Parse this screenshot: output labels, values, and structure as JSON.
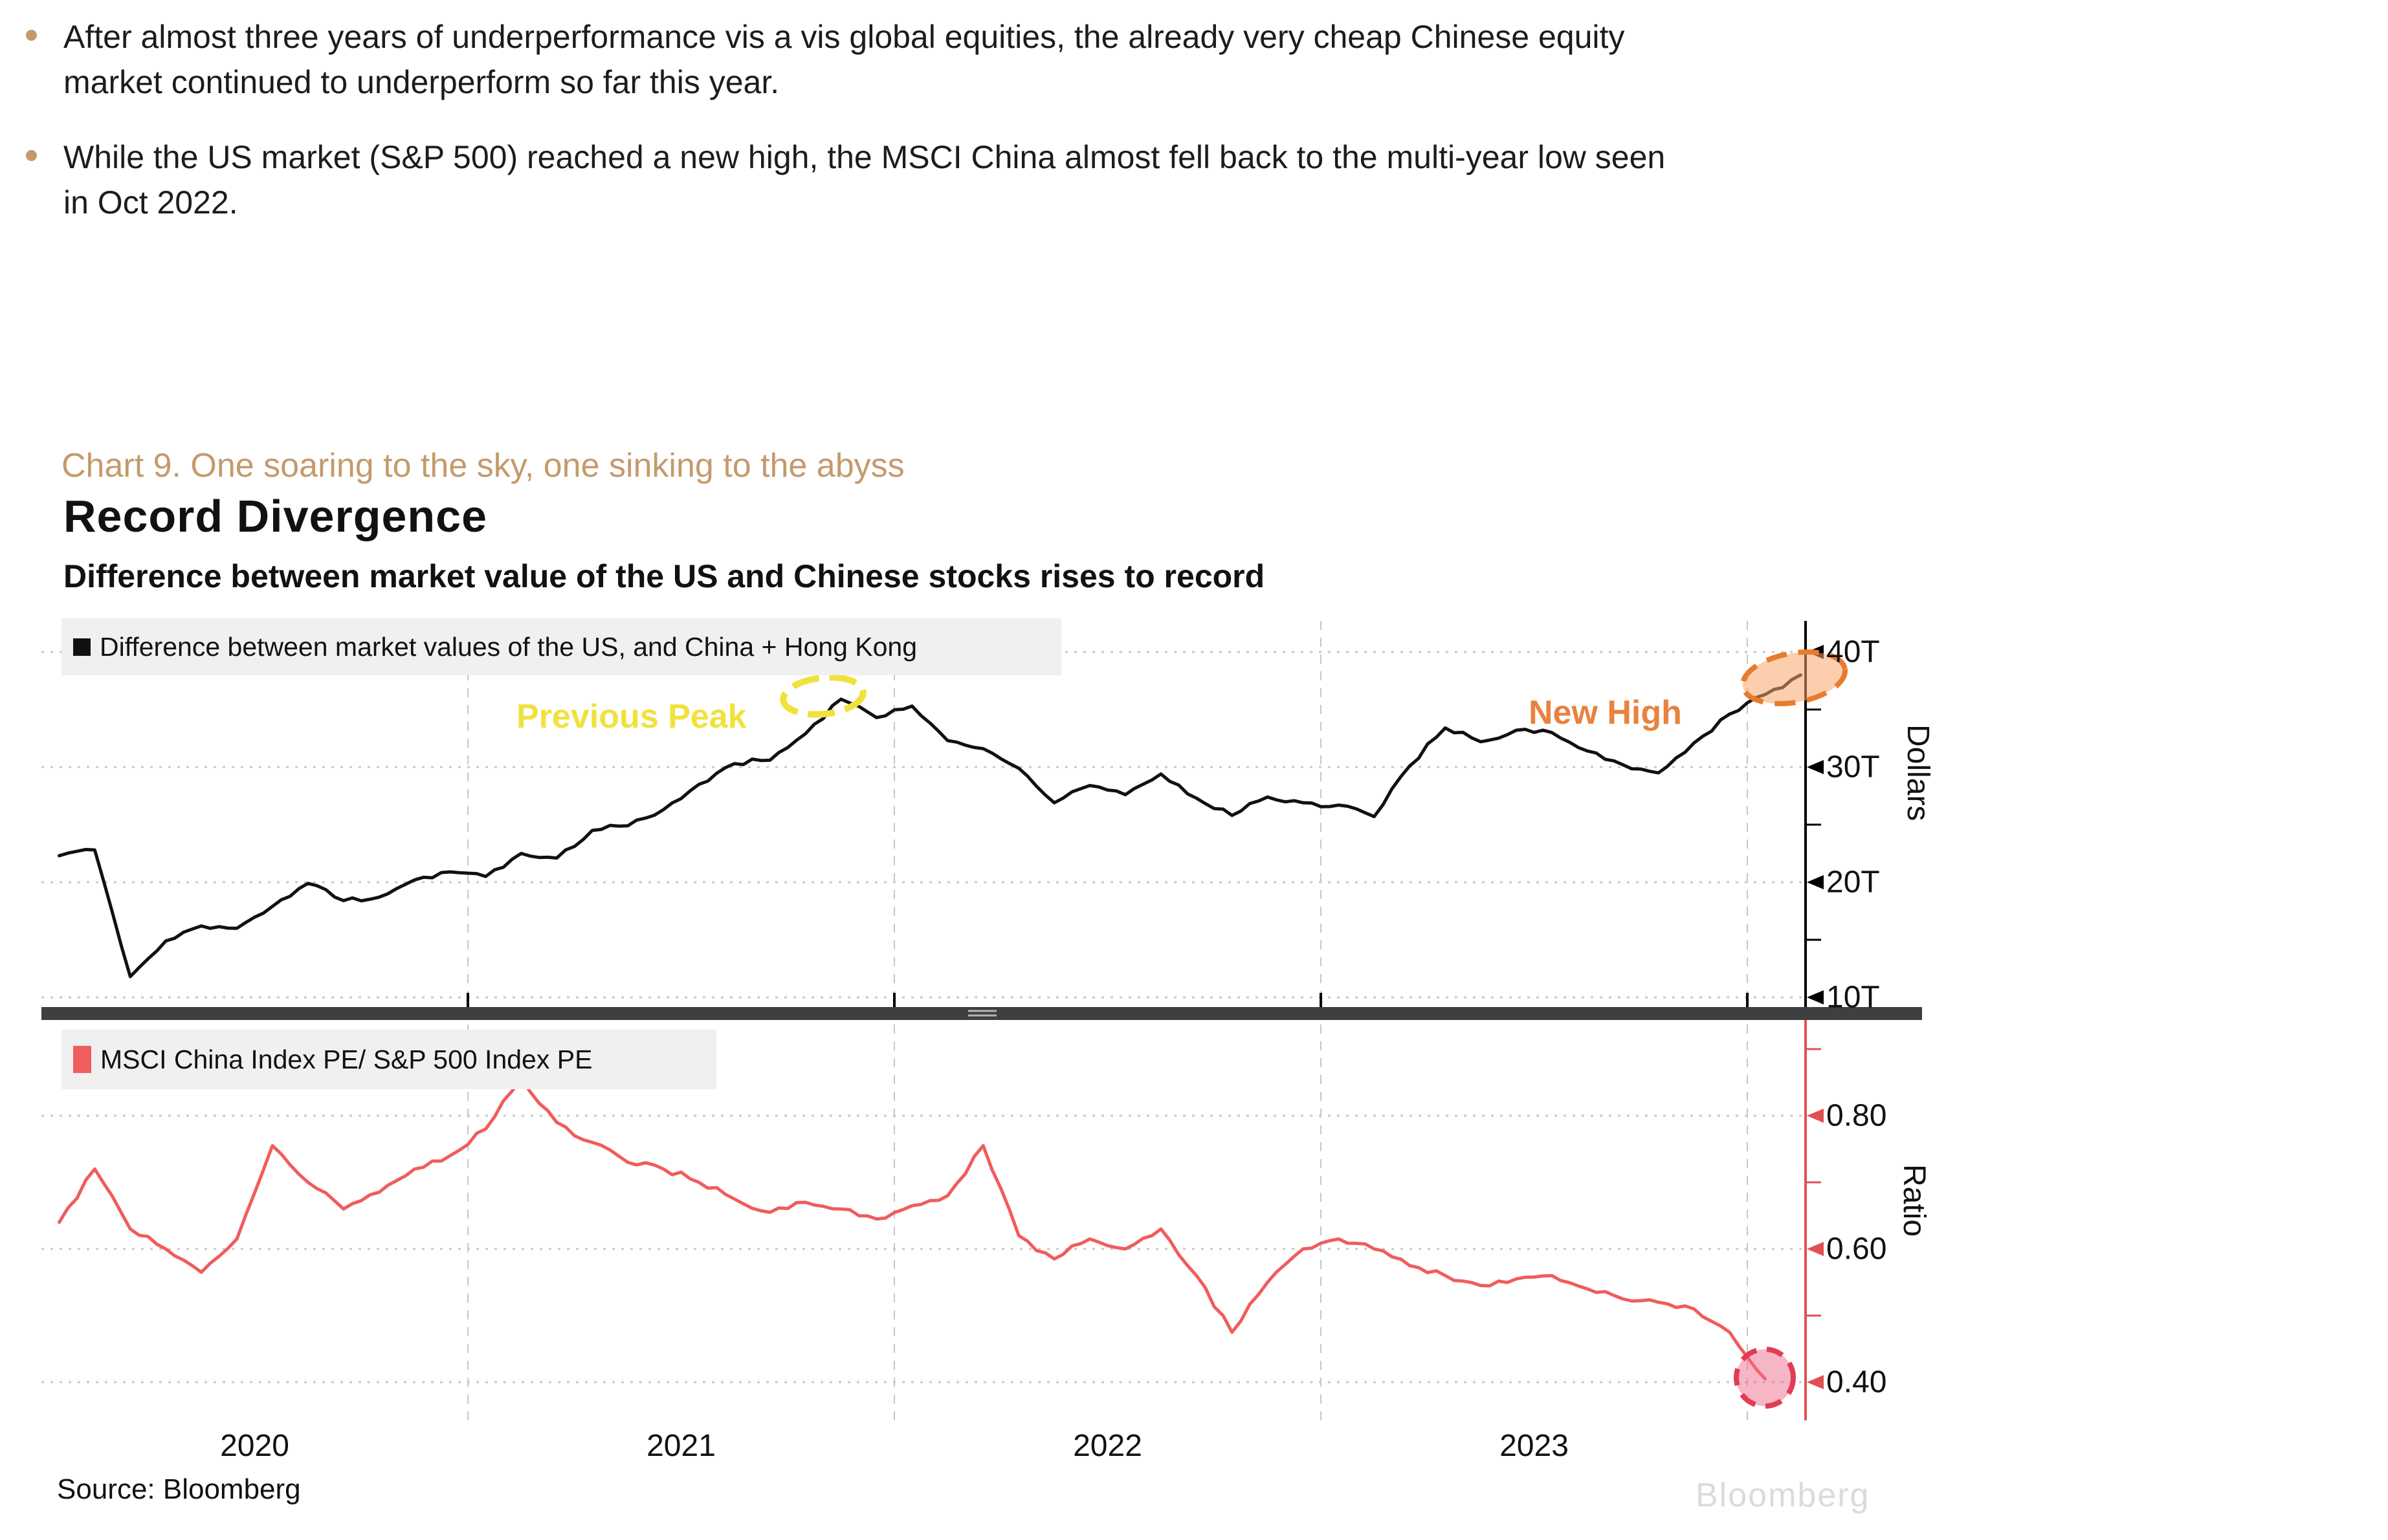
{
  "page": {
    "bullets": [
      {
        "lines": [
          "After almost three years of underperformance vis a vis global equities, the already very cheap Chinese equity",
          "market continued to underperform so far this year."
        ]
      },
      {
        "lines": [
          "While the US market (S&P 500) reached a new high, the MSCI China almost fell back to the multi-year low seen",
          "in Oct 2022."
        ]
      }
    ],
    "bullet_color": "#C49A6B"
  },
  "chart": {
    "caption": "Chart 9. One soaring to the sky, one sinking to the abyss",
    "title": "Record Divergence",
    "subtitle": "Difference between market value of the US and Chinese stocks rises to record",
    "source": "Source: Bloomberg",
    "watermark": "Bloomberg",
    "colors": {
      "accent_tan": "#C49A6B",
      "top_line": "#111111",
      "bottom_line": "#F05C5C",
      "bottom_axis": "#E05050",
      "yellow_annotation": "#F0E23C",
      "orange_annotation": "#E8823F",
      "red_circle": "#E23B56",
      "legend_band": "#F0F0F0",
      "divider": "#3F3F3F",
      "gridline": "#C8C8C8"
    }
  },
  "chart_data": [
    {
      "type": "line",
      "panel": "top",
      "name": "Difference between market values of the US, and China + Hong Kong",
      "ylabel": "Dollars",
      "unit": "USD trillions",
      "color": "#111111",
      "x_start": "2020-01",
      "x_interval": "monthly",
      "x_labels": [
        "2020",
        "2021",
        "2022",
        "2023"
      ],
      "ylim": [
        8.5,
        42.5
      ],
      "yticks": [
        10,
        20,
        30,
        40
      ],
      "ytick_labels": [
        "10T",
        "20T",
        "30T",
        "40T"
      ],
      "grid": "dotted horizontal + dashed vertical year lines",
      "legend_position": "top-left inside plot",
      "values": [
        22.3,
        22.8,
        11.8,
        14.9,
        16.2,
        16.0,
        17.9,
        19.9,
        18.4,
        18.7,
        20.2,
        20.9,
        20.5,
        22.5,
        22.1,
        24.5,
        24.9,
        26.3,
        28.5,
        30.3,
        30.6,
        32.9,
        35.9,
        34.3,
        35.3,
        32.3,
        31.6,
        29.9,
        26.9,
        28.4,
        27.6,
        29.4,
        27.3,
        25.8,
        27.4,
        26.9,
        26.7,
        25.7,
        30.1,
        33.4,
        32.2,
        33.2,
        33.0,
        31.4,
        30.2,
        29.5,
        32.1,
        34.6,
        36.3,
        38.0
      ],
      "annotations": [
        {
          "label": "Previous Peak",
          "x": "2021-11",
          "value": 36.1,
          "color": "#F0E23C",
          "marker": "yellow scribble ellipse"
        },
        {
          "label": "New High",
          "x": "2024-02",
          "value": 38.0,
          "color": "#E8823F",
          "marker": "orange dashed ellipse"
        }
      ]
    },
    {
      "type": "line",
      "panel": "bottom",
      "name": "MSCI China Index PE/ S&P 500 Index PE",
      "ylabel": "Ratio",
      "unit": "ratio",
      "color": "#F05C5C",
      "x_start": "2020-01",
      "x_interval": "monthly",
      "x_labels": [
        "2020",
        "2021",
        "2022",
        "2023"
      ],
      "ylim": [
        0.345,
        0.955
      ],
      "yticks": [
        0.4,
        0.6,
        0.8
      ],
      "ytick_labels": [
        "0.40",
        "0.60",
        "0.80"
      ],
      "grid": "dotted horizontal + dashed vertical year lines",
      "legend_position": "top-left inside plot",
      "values": [
        0.64,
        0.72,
        0.63,
        0.6,
        0.565,
        0.615,
        0.755,
        0.7,
        0.66,
        0.685,
        0.72,
        0.74,
        0.78,
        0.855,
        0.79,
        0.76,
        0.73,
        0.72,
        0.7,
        0.675,
        0.655,
        0.67,
        0.66,
        0.645,
        0.665,
        0.68,
        0.755,
        0.62,
        0.585,
        0.615,
        0.6,
        0.63,
        0.56,
        0.475,
        0.55,
        0.6,
        0.615,
        0.6,
        0.575,
        0.56,
        0.545,
        0.555,
        0.56,
        0.54,
        0.525,
        0.52,
        0.51,
        0.475,
        0.405
      ],
      "annotations": [
        {
          "label": "multi-year low (circled)",
          "x": "2024-01",
          "value": 0.405,
          "color": "#E23B56",
          "marker": "red dashed circle"
        }
      ]
    }
  ]
}
